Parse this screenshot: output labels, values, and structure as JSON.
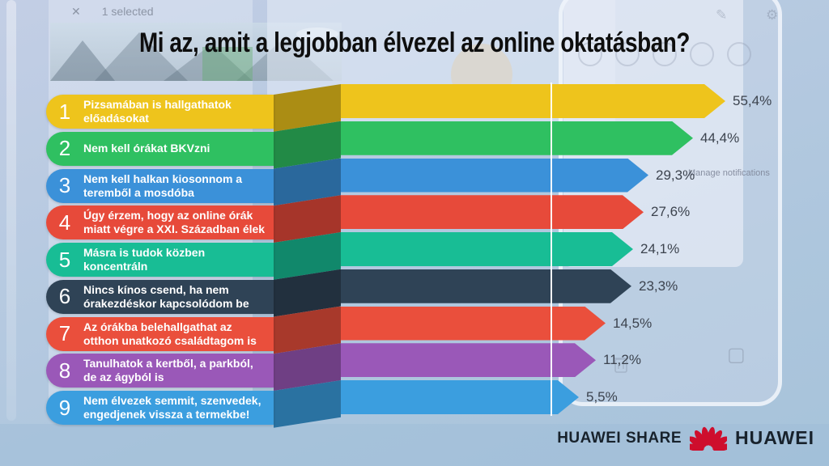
{
  "page": {
    "title": "Mi az, amit a legjobban élvezel az online oktatásban?"
  },
  "chart_data": {
    "type": "bar",
    "orientation": "horizontal",
    "unit": "%",
    "title": "Mi az, amit a legjobban élvezel az online oktatásban?",
    "value_label_color": "#3C434E",
    "items": [
      {
        "rank": "1",
        "label": "Pizsamában is hallgathatok előadásokat",
        "value": 55.4,
        "value_label": "55,4%",
        "color": "#EEC41C"
      },
      {
        "rank": "2",
        "label": "Nem kell órákat BKVzni",
        "value": 44.4,
        "value_label": "44,4%",
        "color": "#2FC061"
      },
      {
        "rank": "3",
        "label": "Nem kell halkan kiosonnom a teremből a mosdóba",
        "value": 29.3,
        "value_label": "29,3%",
        "color": "#3B91D9"
      },
      {
        "rank": "4",
        "label": "Úgy érzem, hogy az online órák miatt végre a XXI. Században élek",
        "value": 27.6,
        "value_label": "27,6%",
        "color": "#E74A3A"
      },
      {
        "rank": "5",
        "label": "Másra is tudok közben koncentráln",
        "value": 24.1,
        "value_label": "24,1%",
        "color": "#18BD95"
      },
      {
        "rank": "6",
        "label": "Nincs kínos csend, ha nem órakezdéskor kapcsolódom be",
        "value": 23.3,
        "value_label": "23,3%",
        "color": "#2F4356"
      },
      {
        "rank": "7",
        "label": "Az órákba belehallgathat az otthon unatkozó családtagom is",
        "value": 14.5,
        "value_label": "14,5%",
        "color": "#EA4F3C"
      },
      {
        "rank": "8",
        "label": "Tanulhatok a kertből, a parkból, de az ágyból is",
        "value": 11.2,
        "value_label": "11,2%",
        "color": "#9A58B8"
      },
      {
        "rank": "9",
        "label": "Nem élvezek semmit, szenvedek, engedjenek vissza a termekbe!",
        "value": 5.5,
        "value_label": "5,5%",
        "color": "#3B9EDF"
      }
    ]
  },
  "background": {
    "gallery_status": {
      "close_glyph": "✕",
      "label": "1 selected"
    },
    "notification_panel": {
      "edit_glyph": "✎",
      "gear_glyph": "⚙",
      "screenshot_glyph": "▢",
      "manage_label": "Manage notifications"
    }
  },
  "footer": {
    "share_label": "HUAWEI SHARE",
    "brand": "HUAWEI",
    "logo_color": "#CE0E2D",
    "text_color": "#18222C"
  }
}
